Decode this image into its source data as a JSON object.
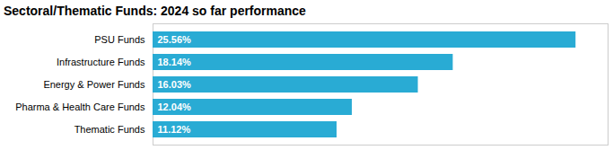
{
  "chart_data": {
    "type": "bar",
    "orientation": "horizontal",
    "title": "Sectoral/Thematic Funds: 2024 so far performance",
    "categories": [
      "PSU Funds",
      "Infrastructure Funds",
      "Energy & Power Funds",
      "Pharma & Health Care Funds",
      "Thematic Funds"
    ],
    "values": [
      25.56,
      18.14,
      16.03,
      12.04,
      11.12
    ],
    "value_labels": [
      "25.56%",
      "18.14%",
      "16.03%",
      "12.04%",
      "11.12%"
    ],
    "data_labels": true,
    "color": "#29ABD4",
    "xlim": [
      0,
      27.5
    ],
    "tick_labels": "y",
    "grid": false
  }
}
